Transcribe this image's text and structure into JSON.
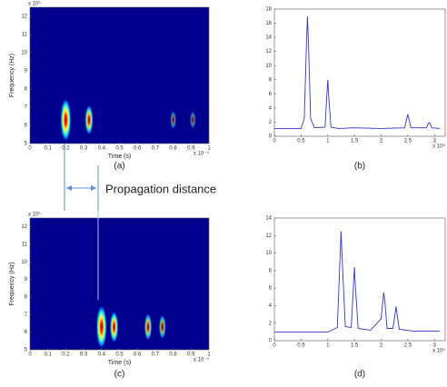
{
  "chart_data": [
    {
      "type": "heatmap",
      "caption": "(a)",
      "xlabel": "Time (s)",
      "ylabel": "Frequency (Hz)",
      "x_multiplier": "x 10⁻⁴",
      "y_multiplier": "x 10⁵",
      "x": [
        0.2,
        0.33,
        0.8,
        0.91
      ],
      "y": [
        6.3,
        6.3,
        6.3,
        6.3
      ],
      "values": [
        1.0,
        0.55,
        0.15,
        0.12
      ],
      "xlim": [
        0,
        1
      ],
      "xticks": [
        0,
        0.1,
        0.2,
        0.3,
        0.4,
        0.5,
        0.6,
        0.7,
        0.8,
        0.9,
        1
      ],
      "ylim": [
        5,
        12.5
      ],
      "yticks": [
        5,
        6,
        7,
        8,
        9,
        10,
        11,
        12
      ],
      "color": "#00008f"
    },
    {
      "type": "line",
      "caption": "(b)",
      "x_multiplier": "x 10⁵",
      "color": "#3333cc",
      "x": [
        0,
        0.5,
        0.56,
        0.6,
        0.62,
        0.64,
        0.68,
        0.75,
        0.95,
        0.98,
        1.0,
        1.02,
        1.06,
        1.2,
        1.5,
        2.0,
        2.44,
        2.48,
        2.5,
        2.52,
        2.56,
        2.85,
        2.89,
        2.91,
        2.95,
        3.1
      ],
      "values": [
        1.1,
        1.1,
        2.5,
        13,
        17,
        13,
        2.5,
        1.2,
        1.3,
        5.5,
        8,
        5.5,
        1.3,
        1.1,
        1.2,
        1.1,
        1.2,
        2.5,
        3.1,
        2.5,
        1.2,
        1.2,
        1.9,
        1.9,
        1.2,
        1.1
      ],
      "xlim": [
        0,
        3.2
      ],
      "xticks": [
        0,
        0.5,
        1,
        1.5,
        2,
        2.5,
        3
      ],
      "ylim": [
        0,
        18
      ],
      "yticks": [
        0,
        2,
        4,
        6,
        8,
        10,
        12,
        14,
        16,
        18
      ]
    },
    {
      "type": "heatmap",
      "caption": "(c)",
      "xlabel": "Time (s)",
      "ylabel": "Frequency (Hz)",
      "x_multiplier": "x 10⁻⁴",
      "y_multiplier": "x 10⁵",
      "x": [
        0.4,
        0.47,
        0.66,
        0.74
      ],
      "y": [
        6.3,
        6.3,
        6.3,
        6.3
      ],
      "values": [
        1.0,
        0.6,
        0.45,
        0.35
      ],
      "xlim": [
        0,
        1
      ],
      "xticks": [
        0,
        0.1,
        0.2,
        0.3,
        0.4,
        0.5,
        0.6,
        0.7,
        0.8,
        0.9,
        1
      ],
      "ylim": [
        5,
        12.5
      ],
      "yticks": [
        5,
        6,
        7,
        8,
        9,
        10,
        11,
        12
      ],
      "color": "#00008f"
    },
    {
      "type": "line",
      "caption": "(d)",
      "x_multiplier": "x 10⁵",
      "color": "#3333cc",
      "x": [
        0,
        0.5,
        1.0,
        1.18,
        1.22,
        1.25,
        1.28,
        1.33,
        1.44,
        1.48,
        1.5,
        1.52,
        1.57,
        1.8,
        2.0,
        2.03,
        2.05,
        2.07,
        2.11,
        2.22,
        2.26,
        2.28,
        2.3,
        2.34,
        2.6,
        3.1
      ],
      "values": [
        1.0,
        1.0,
        1.0,
        1.5,
        8,
        12.5,
        8,
        1.6,
        1.5,
        6,
        8.4,
        6,
        1.4,
        1.2,
        2.5,
        4.5,
        5.5,
        4.5,
        1.4,
        1.4,
        3,
        3.9,
        3,
        1.3,
        1.1,
        1.1
      ],
      "xlim": [
        0,
        3.2
      ],
      "xticks": [
        0,
        0.5,
        1,
        1.5,
        2,
        2.5,
        3
      ],
      "ylim": [
        0,
        14
      ],
      "yticks": [
        0,
        2,
        4,
        6,
        8,
        10,
        12,
        14
      ]
    }
  ],
  "annotation": "Propagation distance"
}
